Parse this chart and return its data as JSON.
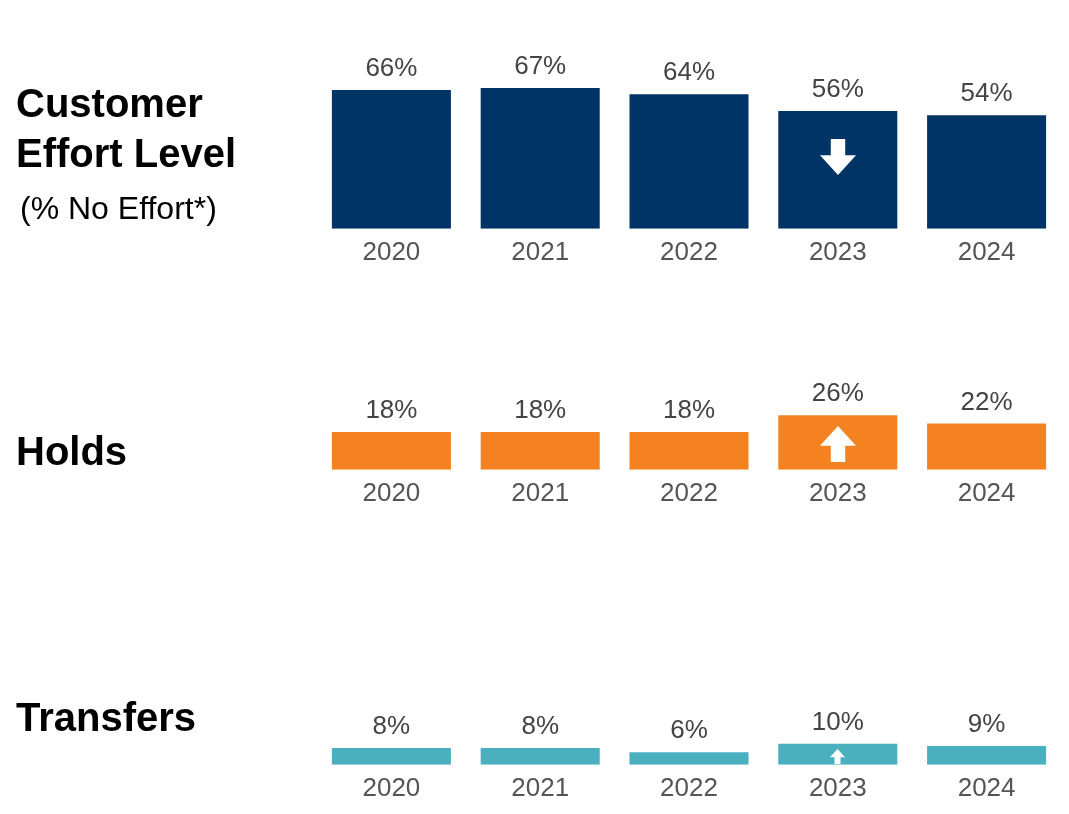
{
  "chart_data": [
    {
      "type": "bar",
      "title": "Customer Effort Level",
      "subtitle": "(% No Effort*)",
      "categories": [
        "2020",
        "2021",
        "2022",
        "2023",
        "2024"
      ],
      "values": [
        66,
        67,
        64,
        56,
        54
      ],
      "value_labels": [
        "66%",
        "67%",
        "64%",
        "56%",
        "54%"
      ],
      "color": "#003466",
      "tick_labels": "x"
    },
    {
      "type": "bar",
      "title": "Holds",
      "categories": [
        "2020",
        "2021",
        "2022",
        "2023",
        "2024"
      ],
      "values": [
        18,
        18,
        18,
        26,
        22
      ],
      "value_labels": [
        "18%",
        "18%",
        "18%",
        "26%",
        "22%"
      ],
      "color": "#f58220",
      "tick_labels": "x"
    },
    {
      "type": "bar",
      "title": "Transfers",
      "categories": [
        "2020",
        "2021",
        "2022",
        "2023",
        "2024"
      ],
      "values": [
        8,
        8,
        6,
        10,
        9
      ],
      "value_labels": [
        "8%",
        "8%",
        "6%",
        "10%",
        "9%"
      ],
      "color": "#4aafbf",
      "tick_labels": "x"
    }
  ]
}
